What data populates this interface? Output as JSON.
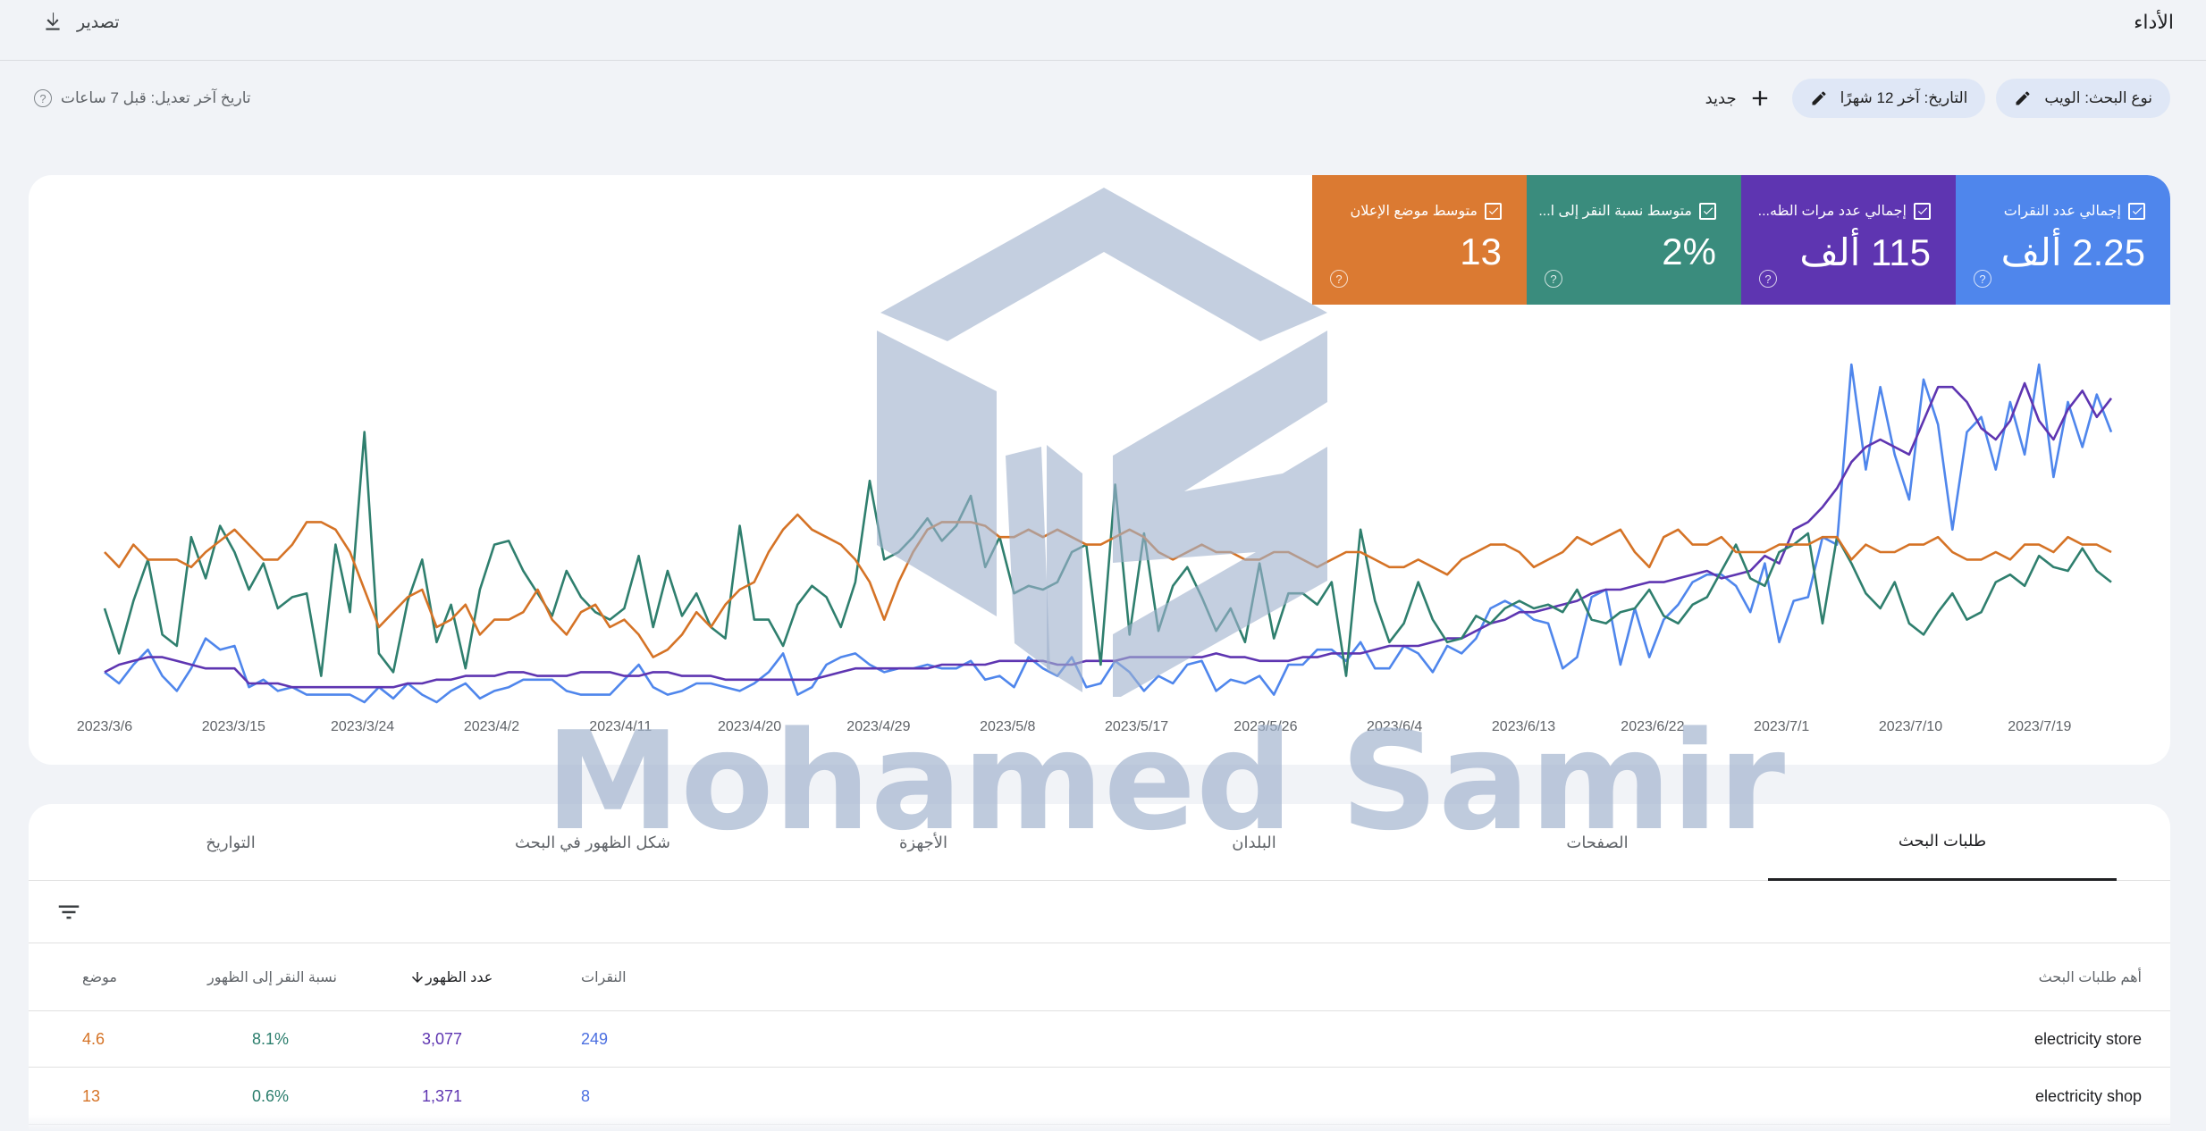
{
  "header": {
    "title": "الأداء",
    "export_label": "تصدير"
  },
  "filters": {
    "search_type": "نوع البحث: الويب",
    "date_range": "التاريخ: آخر 12 شهرًا",
    "new_label": "جديد"
  },
  "last_updated": "تاريخ آخر تعديل: قبل 7 ساعات",
  "metrics": [
    {
      "id": "clicks",
      "label": "إجمالي عدد النقرات",
      "value": "2.25 ألف",
      "color": "#4f86ec",
      "checked": true
    },
    {
      "id": "impressions",
      "label": "إجمالي عدد مرات الظه...",
      "value": "115 ألف",
      "color": "#5e35b1",
      "checked": true
    },
    {
      "id": "ctr",
      "label": "متوسط نسبة النقر إلى ا...",
      "value": "2%",
      "color": "#3a8c7d",
      "checked": true
    },
    {
      "id": "position",
      "label": "متوسط موضع الإعلان",
      "value": "13",
      "color": "#db7a32",
      "checked": true
    }
  ],
  "chart_data": {
    "type": "line",
    "x_tick_labels": [
      "2023/3/6",
      "2023/3/15",
      "2023/3/24",
      "2023/4/2",
      "2023/4/11",
      "2023/4/20",
      "2023/4/29",
      "2023/5/8",
      "2023/5/17",
      "2023/5/26",
      "2023/6/4",
      "2023/6/13",
      "2023/6/22",
      "2023/7/1",
      "2023/7/10",
      "2023/7/19"
    ],
    "x_start": "2023/3/6",
    "x_end": "2023/7/24",
    "grid": false,
    "series": [
      {
        "metric": "clicks",
        "color": "#4f86ec",
        "values": [
          8,
          5,
          10,
          14,
          7,
          3,
          9,
          17,
          14,
          15,
          4,
          6,
          3,
          4,
          2,
          2,
          2,
          2,
          0,
          4,
          1,
          5,
          2,
          0,
          3,
          5,
          1,
          3,
          4,
          6,
          6,
          6,
          3,
          2,
          2,
          2,
          6,
          10,
          4,
          2,
          3,
          5,
          5,
          4,
          3,
          5,
          8,
          13,
          2,
          4,
          10,
          12,
          13,
          10,
          8,
          9,
          9,
          10,
          9,
          9,
          11,
          6,
          7,
          4,
          12,
          9,
          7,
          12,
          4,
          5,
          11,
          8,
          3,
          7,
          5,
          10,
          11,
          3,
          6,
          5,
          7,
          2,
          10,
          10,
          14,
          14,
          11,
          16,
          9,
          9,
          15,
          13,
          8,
          15,
          13,
          17,
          25,
          27,
          25,
          22,
          21,
          9,
          12,
          28,
          30,
          10,
          25,
          12,
          22,
          26,
          32,
          34,
          34,
          31,
          24,
          37,
          16,
          27,
          28,
          44,
          42,
          90,
          62,
          84,
          66,
          54,
          86,
          74,
          46,
          72,
          76,
          62,
          80,
          66,
          90,
          60,
          80,
          68,
          82,
          72
        ]
      },
      {
        "metric": "impressions",
        "color": "#5e35b1",
        "values": [
          8,
          10,
          11,
          12,
          12,
          11,
          10,
          9,
          9,
          9,
          5,
          5,
          5,
          4,
          4,
          4,
          4,
          4,
          4,
          4,
          4,
          5,
          5,
          6,
          6,
          7,
          7,
          7,
          8,
          8,
          7,
          7,
          7,
          8,
          8,
          8,
          7,
          7,
          8,
          8,
          7,
          7,
          7,
          6,
          6,
          6,
          6,
          6,
          6,
          6,
          7,
          8,
          9,
          9,
          9,
          9,
          9,
          9,
          10,
          10,
          10,
          10,
          11,
          11,
          11,
          11,
          10,
          10,
          11,
          11,
          11,
          12,
          12,
          12,
          12,
          12,
          12,
          13,
          12,
          12,
          11,
          11,
          11,
          12,
          12,
          13,
          13,
          13,
          14,
          15,
          15,
          15,
          16,
          17,
          17,
          19,
          21,
          22,
          24,
          24,
          25,
          26,
          27,
          29,
          30,
          30,
          31,
          32,
          32,
          33,
          34,
          35,
          33,
          34,
          35,
          39,
          37,
          46,
          48,
          52,
          57,
          64,
          68,
          70,
          68,
          66,
          75,
          84,
          84,
          80,
          73,
          70,
          75,
          85,
          75,
          70,
          78,
          83,
          76,
          81
        ]
      },
      {
        "metric": "ctr",
        "color": "#2f7f6e",
        "values": [
          25,
          13,
          27,
          38,
          18,
          15,
          44,
          33,
          47,
          40,
          30,
          37,
          25,
          28,
          29,
          7,
          42,
          24,
          72,
          13,
          8,
          27,
          38,
          16,
          26,
          9,
          30,
          42,
          43,
          35,
          29,
          23,
          35,
          28,
          24,
          22,
          25,
          39,
          20,
          35,
          23,
          29,
          20,
          17,
          47,
          22,
          22,
          15,
          26,
          31,
          28,
          20,
          32,
          59,
          38,
          40,
          44,
          49,
          43,
          47,
          55,
          36,
          44,
          29,
          31,
          30,
          32,
          40,
          42,
          10,
          58,
          18,
          45,
          19,
          31,
          36,
          28,
          19,
          25,
          16,
          37,
          17,
          29,
          29,
          26,
          32,
          7,
          46,
          27,
          16,
          21,
          32,
          22,
          16,
          17,
          23,
          21,
          25,
          27,
          25,
          26,
          24,
          30,
          22,
          21,
          24,
          25,
          30,
          23,
          21,
          26,
          28,
          35,
          42,
          33,
          31,
          40,
          42,
          45,
          21,
          44,
          37,
          29,
          25,
          32,
          21,
          18,
          24,
          29,
          22,
          24,
          32,
          34,
          31,
          39,
          36,
          35,
          41,
          35,
          32
        ]
      },
      {
        "metric": "position",
        "color": "#d57326",
        "values": [
          40,
          36,
          42,
          38,
          38,
          38,
          36,
          40,
          43,
          46,
          42,
          38,
          38,
          42,
          48,
          48,
          46,
          40,
          30,
          20,
          24,
          28,
          30,
          20,
          22,
          26,
          18,
          22,
          22,
          24,
          30,
          22,
          18,
          24,
          26,
          20,
          22,
          18,
          12,
          14,
          18,
          24,
          20,
          26,
          30,
          32,
          40,
          46,
          50,
          46,
          44,
          42,
          38,
          32,
          22,
          32,
          40,
          46,
          48,
          48,
          48,
          47,
          44,
          44,
          46,
          44,
          46,
          44,
          42,
          42,
          44,
          46,
          44,
          40,
          38,
          40,
          42,
          40,
          40,
          38,
          38,
          40,
          40,
          38,
          36,
          38,
          40,
          40,
          38,
          36,
          36,
          38,
          36,
          34,
          38,
          40,
          42,
          42,
          40,
          36,
          38,
          40,
          44,
          42,
          44,
          46,
          40,
          36,
          44,
          46,
          42,
          42,
          44,
          40,
          40,
          40,
          42,
          42,
          42,
          44,
          44,
          38,
          42,
          40,
          40,
          42,
          42,
          44,
          40,
          38,
          38,
          40,
          38,
          42,
          42,
          40,
          44,
          42,
          42,
          40
        ]
      }
    ]
  },
  "tabs": [
    "طلبات البحث",
    "الصفحات",
    "البلدان",
    "الأجهزة",
    "شكل الظهور في البحث",
    "التواريخ"
  ],
  "table": {
    "headers": {
      "query": "أهم طلبات البحث",
      "clicks": "النقرات",
      "impressions": "عدد الظهور",
      "ctr": "نسبة النقر إلى الظهور",
      "position": "موضع"
    },
    "rows": [
      {
        "query": "electricity store",
        "clicks": "249",
        "impressions": "3,077",
        "ctr": "8.1%",
        "position": "4.6"
      },
      {
        "query": "electricity shop",
        "clicks": "8",
        "impressions": "1,371",
        "ctr": "0.6%",
        "position": "13"
      }
    ]
  },
  "watermark": {
    "text": "Mohamed Samir"
  }
}
